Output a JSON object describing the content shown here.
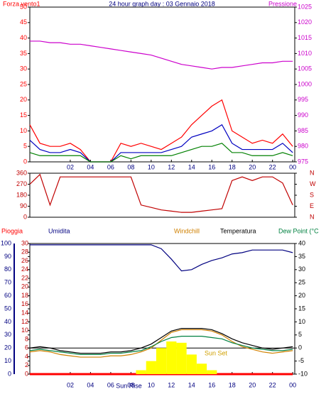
{
  "chart_data": [
    {
      "type": "line",
      "title": "24 hour graph day : 03 Gennaio 2018",
      "x": [
        -2,
        -1,
        0,
        1,
        2,
        3,
        4,
        5,
        6,
        7,
        8,
        9,
        10,
        11,
        12,
        13,
        14,
        15,
        16,
        17,
        18,
        19,
        20,
        21,
        22,
        23,
        24
      ],
      "xlim": [
        -2,
        24.2
      ],
      "xticks": [
        {
          "value": 2,
          "label": "02"
        },
        {
          "value": 4,
          "label": "04"
        },
        {
          "value": 6,
          "label": "06"
        },
        {
          "value": 8,
          "label": "08"
        },
        {
          "value": 10,
          "label": "10"
        },
        12,
        14,
        16,
        18,
        20,
        22,
        {
          "value": 24,
          "label": "00"
        }
      ],
      "ylim": [
        0,
        50
      ],
      "yticks": [
        0,
        5,
        10,
        15,
        20,
        25,
        30,
        35,
        40,
        45,
        50
      ],
      "y2lim": [
        975,
        1025
      ],
      "y2ticks": [
        975,
        980,
        985,
        990,
        995,
        1000,
        1005,
        1010,
        1015,
        1020,
        1025
      ],
      "series": [
        {
          "name": "Forza vento1",
          "color": "#ff0000",
          "values": [
            12,
            6,
            5,
            5,
            6,
            4,
            0,
            0,
            0,
            6,
            5,
            6,
            5,
            4,
            6,
            8,
            12,
            15,
            18,
            20,
            10,
            8,
            6,
            7,
            6,
            9,
            5
          ]
        },
        {
          "color": "#0000c0",
          "values": [
            7,
            4,
            3,
            3,
            4,
            3,
            0,
            0,
            0,
            3,
            3,
            3,
            3,
            3,
            4,
            5,
            8,
            9,
            10,
            12,
            6,
            4,
            4,
            4,
            4,
            6,
            3
          ]
        },
        {
          "color": "#008000",
          "values": [
            3,
            2,
            2,
            2,
            2,
            2,
            0,
            0,
            0,
            2,
            1,
            2,
            2,
            2,
            2,
            3,
            4,
            5,
            5,
            6,
            3,
            3,
            2,
            2,
            2,
            3,
            2
          ]
        },
        {
          "name": "Pressione",
          "color": "#cc00cc",
          "axis": "y2",
          "values": [
            1014,
            1014,
            1013.5,
            1013.5,
            1013,
            1013,
            1012.5,
            1012,
            1011.5,
            1011,
            1010.5,
            1010,
            1009.5,
            1008.5,
            1007.5,
            1006.5,
            1006,
            1005.5,
            1005,
            1005.5,
            1005.5,
            1006,
            1006.5,
            1007,
            1007,
            1007.5,
            1007.5
          ]
        }
      ]
    },
    {
      "type": "line",
      "x": [
        -2,
        -1,
        0,
        1,
        2,
        3,
        4,
        5,
        6,
        7,
        8,
        9,
        10,
        11,
        12,
        13,
        14,
        15,
        16,
        17,
        18,
        19,
        20,
        21,
        22,
        23,
        24
      ],
      "xlim": [
        -2,
        24.2
      ],
      "ylim": [
        0,
        360
      ],
      "yticks": [
        0,
        90,
        180,
        270,
        360
      ],
      "y2lim": [
        0,
        360
      ],
      "y2ticks": [
        {
          "value": 0,
          "label": "N"
        },
        {
          "value": 90,
          "label": "E"
        },
        {
          "value": 180,
          "label": "S"
        },
        {
          "value": 270,
          "label": "W"
        },
        {
          "value": 360,
          "label": "N"
        }
      ],
      "series": [
        {
          "color": "#c00000",
          "values": [
            270,
            350,
            100,
            330,
            330,
            330,
            330,
            330,
            330,
            330,
            330,
            100,
            80,
            60,
            50,
            40,
            40,
            50,
            60,
            70,
            300,
            330,
            300,
            330,
            330,
            280,
            100
          ]
        }
      ]
    },
    {
      "type": "line",
      "x": [
        -2,
        -1,
        0,
        1,
        2,
        3,
        4,
        5,
        6,
        7,
        8,
        9,
        10,
        11,
        12,
        13,
        14,
        15,
        16,
        17,
        18,
        19,
        20,
        21,
        22,
        23,
        24
      ],
      "xlim": [
        -2,
        24.2
      ],
      "xticks": [
        {
          "value": 2,
          "label": "02"
        },
        {
          "value": 4,
          "label": "04"
        },
        {
          "value": 6,
          "label": "06"
        },
        {
          "value": 8,
          "label": "08"
        },
        {
          "value": 10,
          "label": "10"
        },
        12,
        14,
        16,
        18,
        20,
        22,
        {
          "value": 24,
          "label": "00"
        }
      ],
      "ylim": [
        0,
        100
      ],
      "yticks": [
        0,
        10,
        20,
        30,
        40,
        50,
        60,
        70,
        80,
        90,
        100
      ],
      "y3lim": [
        0,
        30
      ],
      "y3ticks": [
        0,
        2,
        4,
        6,
        8,
        10,
        12,
        14,
        16,
        18,
        20,
        22,
        24,
        26,
        28,
        30
      ],
      "y2lim": [
        -10,
        40
      ],
      "y2ticks": [
        -10,
        -5,
        0,
        5,
        10,
        15,
        20,
        25,
        30,
        35,
        40
      ],
      "series": [
        {
          "name": "Pioggia",
          "color": "#ff0000",
          "axis": "y3",
          "values": [
            0,
            0,
            0,
            0,
            0,
            0,
            0,
            0,
            0,
            0,
            0,
            0,
            0,
            0,
            0,
            0,
            0,
            0,
            0,
            0,
            0,
            0,
            0,
            0,
            0,
            0,
            0
          ]
        },
        {
          "name": "Umidita",
          "color": "#000080",
          "values": [
            99,
            99,
            99,
            99,
            99,
            99,
            99,
            99,
            99,
            99,
            99,
            99,
            99,
            96,
            88,
            79,
            80,
            84,
            87,
            89,
            92,
            93,
            95,
            95,
            95,
            95,
            93
          ]
        },
        {
          "name": "Windchill",
          "color": "#d08000",
          "axis": "y2",
          "values": [
            -1.5,
            -1,
            -1.5,
            -2.5,
            -3,
            -3.5,
            -3.5,
            -3.5,
            -3,
            -3,
            -2.5,
            -1.5,
            0,
            3,
            6,
            7,
            7,
            7,
            6.5,
            5,
            2.5,
            0.5,
            -0.5,
            -1.5,
            -2,
            -1.5,
            -1
          ]
        },
        {
          "name": "Temperatura",
          "color": "#000000",
          "axis": "y2",
          "values": [
            0,
            0.5,
            0,
            -1,
            -1.5,
            -2,
            -2,
            -2,
            -1.5,
            -1.5,
            -1,
            0,
            1.5,
            4,
            6.5,
            7.5,
            7.5,
            7.5,
            7,
            5.5,
            3.5,
            2,
            1,
            0,
            -0.5,
            0,
            0.5
          ]
        },
        {
          "name": "Dew Point (°C",
          "color": "#008040",
          "axis": "y2",
          "values": [
            -1,
            -0.5,
            -1,
            -1.5,
            -2,
            -2.5,
            -2.5,
            -2.5,
            -2,
            -2,
            -1.5,
            -1,
            0.5,
            2.5,
            4,
            4.5,
            4.5,
            4.5,
            4,
            3.5,
            2,
            1,
            0,
            -0.5,
            -1,
            -1,
            -0.5
          ]
        },
        {
          "type": "bar",
          "color": "#ffff00",
          "values": [
            0,
            0,
            0,
            0,
            0,
            0,
            0,
            0,
            0,
            0,
            0,
            3,
            10,
            20,
            25,
            24,
            15,
            8,
            3,
            0,
            0,
            0,
            0,
            0,
            0,
            0,
            0
          ]
        }
      ],
      "annotations": [
        {
          "text": "Sun Rise",
          "x": 7.8
        },
        {
          "text": "Sun Set",
          "x": 16.4
        }
      ]
    }
  ]
}
